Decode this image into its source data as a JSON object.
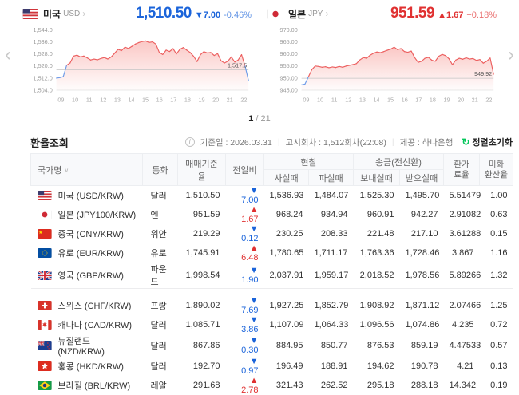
{
  "glyphs": {
    "up": "▲",
    "down": "▼",
    "sort": "∨",
    "forward": "›",
    "back": "‹",
    "info": "i",
    "refresh": "↻"
  },
  "colors": {
    "up": "#e03131",
    "down": "#1b64da",
    "line_up": "#ec5f5f",
    "line_down": "#6f9ce8",
    "fill": "#f47c76",
    "ref_line": "#c4c4c4",
    "accent_green": "#03c75a"
  },
  "charts": [
    {
      "flag": "us",
      "country": "미국",
      "code": "USD",
      "price": "1,510.50",
      "dir": "down",
      "change": "7.00",
      "pct": "-0.46%",
      "prev_close": 1517.5,
      "prev_label": "1,517.5",
      "y_min": 1504,
      "y_max": 1544,
      "y_ticks": [
        "1,544.0",
        "1,536.0",
        "1,528.0",
        "1,520.0",
        "1,512.0",
        "1,504.0"
      ],
      "x_labels": [
        "09",
        "10",
        "11",
        "12",
        "13",
        "14",
        "15",
        "16",
        "17",
        "18",
        "19",
        "20",
        "21",
        "22"
      ],
      "values": [
        1512.0,
        1512.3,
        1513.0,
        1520.5,
        1522.0,
        1526.5,
        1527.2,
        1526.0,
        1526.6,
        1525.4,
        1524.0,
        1524.6,
        1524.1,
        1525.0,
        1525.6,
        1524.6,
        1526.0,
        1528.5,
        1531.0,
        1530.2,
        1532.5,
        1531.6,
        1533.0,
        1534.5,
        1535.5,
        1536.2,
        1536.6,
        1535.6,
        1536.0,
        1534.5,
        1529.0,
        1527.6,
        1530.5,
        1529.6,
        1531.5,
        1528.0,
        1531.0,
        1532.2,
        1530.5,
        1529.0,
        1526.5,
        1523.0,
        1527.5,
        1529.5,
        1528.6,
        1529.0,
        1527.0,
        1528.2,
        1523.5,
        1522.0,
        1523.2,
        1526.0,
        1522.6,
        1524.0,
        1527.5,
        1520.0,
        1510.5
      ]
    },
    {
      "flag": "jp",
      "country": "일본",
      "code": "JPY",
      "price": "951.59",
      "dir": "up",
      "change": "1.67",
      "pct": "+0.18%",
      "prev_close": 949.92,
      "prev_label": "949.92",
      "y_min": 945,
      "y_max": 970,
      "y_ticks": [
        "970.00",
        "965.00",
        "960.00",
        "955.00",
        "950.00",
        "945.00"
      ],
      "x_labels": [
        "09",
        "10",
        "11",
        "12",
        "13",
        "14",
        "15",
        "16",
        "17",
        "18",
        "19",
        "20",
        "21",
        "22"
      ],
      "values": [
        947.2,
        947.5,
        950.5,
        953.5,
        955.0,
        954.8,
        954.5,
        954.7,
        954.3,
        954.6,
        954.4,
        954.8,
        954.5,
        955.0,
        955.3,
        955.6,
        956.0,
        957.5,
        958.5,
        958.2,
        959.5,
        960.3,
        960.8,
        960.5,
        961.0,
        961.5,
        962.0,
        962.8,
        961.8,
        962.2,
        961.0,
        960.7,
        961.2,
        958.5,
        956.5,
        957.0,
        958.2,
        958.6,
        957.4,
        957.0,
        959.0,
        959.8,
        959.3,
        958.0,
        955.5,
        957.5,
        958.2,
        957.8,
        958.4,
        957.9,
        958.1,
        957.3,
        957.7,
        956.2,
        957.0,
        958.3,
        951.6
      ]
    }
  ],
  "pagination": {
    "current": "1",
    "separator": "/",
    "total": "21"
  },
  "section": {
    "title": "환율조회",
    "meta_items": [
      "기준일 : 2026.03.31",
      "고시회차 : 1,512회차(22:08)",
      "제공 : 하나은행"
    ],
    "reset_sort": "정렬초기화"
  },
  "table": {
    "headers": {
      "country": "국가명",
      "currency": "통화",
      "base_rate": "매매기준율",
      "change": "전일비",
      "cash": "현찰",
      "cash_buy": "사실때",
      "cash_sell": "파실때",
      "transfer": "송금(전신환)",
      "send": "보내실때",
      "receive": "받으실때",
      "fee_rate": "환가\n료율",
      "usd_conv": "미화\n환산율"
    },
    "groups": [
      [
        {
          "flag": "us",
          "name": "미국 (USD/KRW)",
          "currency": "달러",
          "rate": "1,510.50",
          "dir": "down",
          "change": "7.00",
          "cash_buy": "1,536.93",
          "cash_sell": "1,484.07",
          "send": "1,525.30",
          "receive": "1,495.70",
          "fee": "5.51479",
          "usd": "1.00"
        },
        {
          "flag": "jp",
          "name": "일본 (JPY100/KRW)",
          "currency": "엔",
          "rate": "951.59",
          "dir": "up",
          "change": "1.67",
          "cash_buy": "968.24",
          "cash_sell": "934.94",
          "send": "960.91",
          "receive": "942.27",
          "fee": "2.91082",
          "usd": "0.63"
        },
        {
          "flag": "cn",
          "name": "중국 (CNY/KRW)",
          "currency": "위안",
          "rate": "219.29",
          "dir": "down",
          "change": "0.12",
          "cash_buy": "230.25",
          "cash_sell": "208.33",
          "send": "221.48",
          "receive": "217.10",
          "fee": "3.61288",
          "usd": "0.15"
        },
        {
          "flag": "eu",
          "name": "유로 (EUR/KRW)",
          "currency": "유로",
          "rate": "1,745.91",
          "dir": "up",
          "change": "6.48",
          "cash_buy": "1,780.65",
          "cash_sell": "1,711.17",
          "send": "1,763.36",
          "receive": "1,728.46",
          "fee": "3.867",
          "usd": "1.16"
        },
        {
          "flag": "gb",
          "name": "영국 (GBP/KRW)",
          "currency": "파운드",
          "rate": "1,998.54",
          "dir": "down",
          "change": "1.90",
          "cash_buy": "2,037.91",
          "cash_sell": "1,959.17",
          "send": "2,018.52",
          "receive": "1,978.56",
          "fee": "5.89266",
          "usd": "1.32"
        }
      ],
      [
        {
          "flag": "ch",
          "name": "스위스 (CHF/KRW)",
          "currency": "프랑",
          "rate": "1,890.02",
          "dir": "down",
          "change": "7.69",
          "cash_buy": "1,927.25",
          "cash_sell": "1,852.79",
          "send": "1,908.92",
          "receive": "1,871.12",
          "fee": "2.07466",
          "usd": "1.25"
        },
        {
          "flag": "ca",
          "name": "캐나다 (CAD/KRW)",
          "currency": "달러",
          "rate": "1,085.71",
          "dir": "down",
          "change": "3.86",
          "cash_buy": "1,107.09",
          "cash_sell": "1,064.33",
          "send": "1,096.56",
          "receive": "1,074.86",
          "fee": "4.235",
          "usd": "0.72"
        },
        {
          "flag": "nz",
          "name": "뉴질랜드 (NZD/KRW)",
          "currency": "달러",
          "rate": "867.86",
          "dir": "down",
          "change": "0.30",
          "cash_buy": "884.95",
          "cash_sell": "850.77",
          "send": "876.53",
          "receive": "859.19",
          "fee": "4.47533",
          "usd": "0.57"
        },
        {
          "flag": "hk",
          "name": "홍콩 (HKD/KRW)",
          "currency": "달러",
          "rate": "192.70",
          "dir": "down",
          "change": "0.97",
          "cash_buy": "196.49",
          "cash_sell": "188.91",
          "send": "194.62",
          "receive": "190.78",
          "fee": "4.21",
          "usd": "0.13"
        },
        {
          "flag": "br",
          "name": "브라질 (BRL/KRW)",
          "currency": "레알",
          "rate": "291.68",
          "dir": "up",
          "change": "2.78",
          "cash_buy": "321.43",
          "cash_sell": "262.52",
          "send": "295.18",
          "receive": "288.18",
          "fee": "14.342",
          "usd": "0.19"
        }
      ]
    ]
  }
}
